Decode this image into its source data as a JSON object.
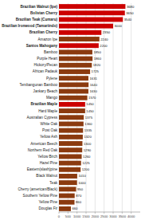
{
  "chart_data": {
    "type": "bar",
    "orientation": "horizontal",
    "categories": [
      "Brazilian Walnut (Ipe)",
      "Bolivian Cherry",
      "Brazilian Teak (Cumaru)",
      "Brazilian Ironwood (Tamariindo)",
      "Brazilian Cherry",
      "Amazon Ipe",
      "Santos Mahogany",
      "Bamboo",
      "Purple Heart",
      "Hickory/Pecan",
      "African Padauk",
      "Pylene",
      "Tembangunan Bamboo",
      "Jankary Beach",
      "Mango",
      "Brazilian Maple",
      "Hard Maple",
      "Australian Cypress",
      "White Oak",
      "Post Oak",
      "Yellow Ash",
      "American Beech",
      "Northern Red Oak",
      "Yellow Birch",
      "Hazel Pine",
      "Eastern(slash)pine",
      "Black Walnut",
      "Teak",
      "Cherry (american/Black)",
      "Southern Yellow Pine",
      "Yellow Pine",
      "Douglas Fir"
    ],
    "values": [
      3680,
      3650,
      3540,
      3000,
      2350,
      2240,
      2200,
      1850,
      1860,
      1820,
      1725,
      1631,
      1640,
      1630,
      1570,
      1450,
      1450,
      1375,
      1360,
      1335,
      1320,
      1300,
      1290,
      1260,
      1225,
      1200,
      1010,
      1000,
      950,
      870,
      860,
      660
    ],
    "color": "#8B3A0F",
    "colors": [
      "#cc0000",
      "#cc0000",
      "#cc0000",
      "#cc0000",
      "#cc0000",
      "#8B3A0F",
      "#cc0000",
      "#8B3A0F",
      "#8B3A0F",
      "#8B3A0F",
      "#8B3A0F",
      "#8B3A0F",
      "#8B3A0F",
      "#8B3A0F",
      "#8B3A0F",
      "#cc0000",
      "#8B3A0F",
      "#8B3A0F",
      "#8B3A0F",
      "#8B3A0F",
      "#8B3A0F",
      "#8B3A0F",
      "#8B3A0F",
      "#8B3A0F",
      "#8B3A0F",
      "#8B3A0F",
      "#8B3A0F",
      "#8B3A0F",
      "#8B3A0F",
      "#8B3A0F",
      "#8B3A0F",
      "#8B3A0F"
    ],
    "xlim": [
      0,
      4500
    ],
    "xticks": [
      0,
      500,
      1000,
      1500,
      2000,
      2500,
      3000,
      3500,
      4000
    ],
    "grid": true,
    "data_labels": true
  }
}
